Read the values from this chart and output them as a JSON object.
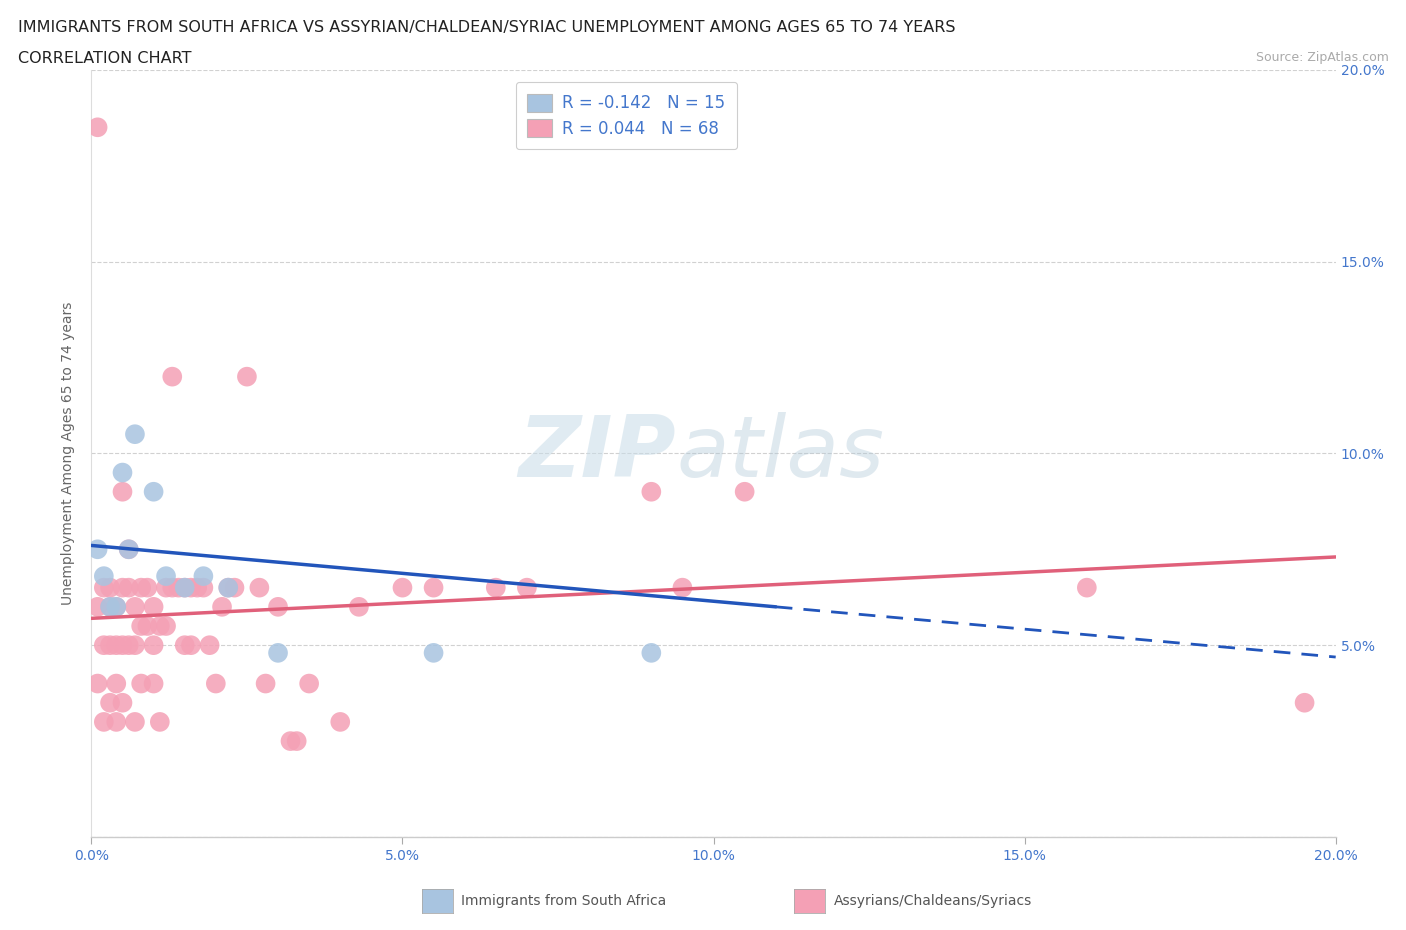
{
  "title_line1": "IMMIGRANTS FROM SOUTH AFRICA VS ASSYRIAN/CHALDEAN/SYRIAC UNEMPLOYMENT AMONG AGES 65 TO 74 YEARS",
  "title_line2": "CORRELATION CHART",
  "source": "Source: ZipAtlas.com",
  "ylabel": "Unemployment Among Ages 65 to 74 years",
  "xlim": [
    0.0,
    0.2
  ],
  "ylim": [
    0.0,
    0.2
  ],
  "xticks": [
    0.0,
    0.05,
    0.1,
    0.15,
    0.2
  ],
  "yticks": [
    0.0,
    0.05,
    0.1,
    0.15,
    0.2
  ],
  "xtick_labels": [
    "0.0%",
    "5.0%",
    "10.0%",
    "15.0%",
    "20.0%"
  ],
  "ytick_labels_right": [
    "5.0%",
    "10.0%",
    "15.0%",
    "20.0%"
  ],
  "blue_R": -0.142,
  "blue_N": 15,
  "pink_R": 0.044,
  "pink_N": 68,
  "legend_label_blue": "Immigrants from South Africa",
  "legend_label_pink": "Assyrians/Chaldeans/Syriacs",
  "blue_color": "#a8c4e0",
  "blue_line_color": "#2255bb",
  "pink_color": "#f4a0b5",
  "pink_line_color": "#e0607a",
  "watermark_zip": "ZIP",
  "watermark_atlas": "atlas",
  "background_color": "#ffffff",
  "blue_x": [
    0.001,
    0.002,
    0.003,
    0.004,
    0.005,
    0.006,
    0.007,
    0.01,
    0.012,
    0.015,
    0.018,
    0.022,
    0.03,
    0.055,
    0.09
  ],
  "blue_y": [
    0.075,
    0.068,
    0.06,
    0.06,
    0.095,
    0.075,
    0.105,
    0.09,
    0.068,
    0.065,
    0.068,
    0.065,
    0.048,
    0.048,
    0.048
  ],
  "pink_x": [
    0.001,
    0.001,
    0.001,
    0.002,
    0.002,
    0.002,
    0.003,
    0.003,
    0.003,
    0.003,
    0.004,
    0.004,
    0.004,
    0.004,
    0.005,
    0.005,
    0.005,
    0.005,
    0.006,
    0.006,
    0.006,
    0.007,
    0.007,
    0.007,
    0.008,
    0.008,
    0.008,
    0.009,
    0.009,
    0.01,
    0.01,
    0.01,
    0.011,
    0.011,
    0.012,
    0.012,
    0.013,
    0.013,
    0.014,
    0.015,
    0.015,
    0.016,
    0.016,
    0.017,
    0.018,
    0.019,
    0.02,
    0.021,
    0.022,
    0.023,
    0.025,
    0.027,
    0.028,
    0.03,
    0.032,
    0.033,
    0.035,
    0.04,
    0.043,
    0.05,
    0.055,
    0.065,
    0.07,
    0.09,
    0.095,
    0.105,
    0.16,
    0.195
  ],
  "pink_y": [
    0.185,
    0.06,
    0.04,
    0.065,
    0.05,
    0.03,
    0.065,
    0.06,
    0.05,
    0.035,
    0.06,
    0.05,
    0.04,
    0.03,
    0.09,
    0.065,
    0.05,
    0.035,
    0.075,
    0.065,
    0.05,
    0.06,
    0.05,
    0.03,
    0.065,
    0.055,
    0.04,
    0.065,
    0.055,
    0.06,
    0.05,
    0.04,
    0.055,
    0.03,
    0.065,
    0.055,
    0.12,
    0.065,
    0.065,
    0.065,
    0.05,
    0.065,
    0.05,
    0.065,
    0.065,
    0.05,
    0.04,
    0.06,
    0.065,
    0.065,
    0.12,
    0.065,
    0.04,
    0.06,
    0.025,
    0.025,
    0.04,
    0.03,
    0.06,
    0.065,
    0.065,
    0.065,
    0.065,
    0.09,
    0.065,
    0.09,
    0.065,
    0.035
  ],
  "blue_trend_x0": 0.0,
  "blue_trend_y0": 0.076,
  "blue_trend_x1": 0.11,
  "blue_trend_y1": 0.06,
  "pink_trend_x0": 0.0,
  "pink_trend_y0": 0.057,
  "pink_trend_x1": 0.2,
  "pink_trend_y1": 0.073
}
